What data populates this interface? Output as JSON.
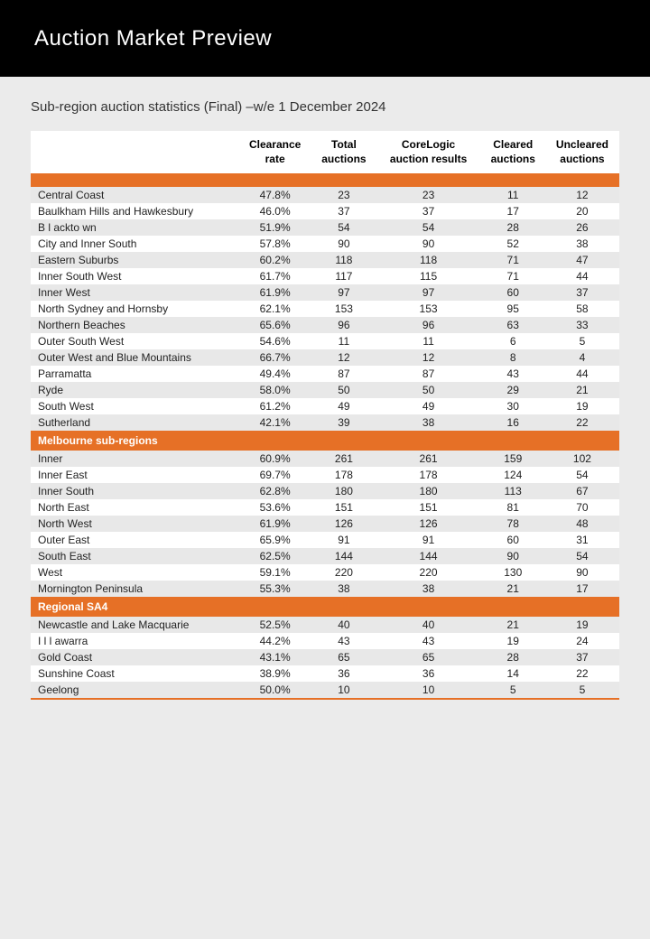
{
  "header": {
    "title": "Auction Market Preview"
  },
  "subtitle": "Sub-region auction statistics (Final) –w/e 1 December 2024",
  "columns": [
    "",
    "Clearance rate",
    "Total auctions",
    "CoreLogic auction results",
    "Cleared auctions",
    "Uncleared auctions"
  ],
  "sections": [
    {
      "name": "",
      "rows": [
        [
          "Central Coast",
          "47.8%",
          "23",
          "23",
          "11",
          "12"
        ],
        [
          "Baulkham Hills and Hawkesbury",
          "46.0%",
          "37",
          "37",
          "17",
          "20"
        ],
        [
          "B l ackto wn",
          "51.9%",
          "54",
          "54",
          "28",
          "26"
        ],
        [
          "City and Inner South",
          "57.8%",
          "90",
          "90",
          "52",
          "38"
        ],
        [
          "Eastern Suburbs",
          "60.2%",
          "118",
          "118",
          "71",
          "47"
        ],
        [
          "Inner South West",
          "61.7%",
          "117",
          "115",
          "71",
          "44"
        ],
        [
          "Inner West",
          "61.9%",
          "97",
          "97",
          "60",
          "37"
        ],
        [
          "North Sydney and Hornsby",
          "62.1%",
          "153",
          "153",
          "95",
          "58"
        ],
        [
          "Northern Beaches",
          "65.6%",
          "96",
          "96",
          "63",
          "33"
        ],
        [
          "Outer South West",
          "54.6%",
          "11",
          "11",
          "6",
          "5"
        ],
        [
          "Outer West and Blue Mountains",
          "66.7%",
          "12",
          "12",
          "8",
          "4"
        ],
        [
          "Parramatta",
          "49.4%",
          "87",
          "87",
          "43",
          "44"
        ],
        [
          "Ryde",
          "58.0%",
          "50",
          "50",
          "29",
          "21"
        ],
        [
          "South West",
          "61.2%",
          "49",
          "49",
          "30",
          "19"
        ],
        [
          "Sutherland",
          "42.1%",
          "39",
          "38",
          "16",
          "22"
        ]
      ]
    },
    {
      "name": "Melbourne sub-regions",
      "rows": [
        [
          "Inner",
          "60.9%",
          "261",
          "261",
          "159",
          "102"
        ],
        [
          "Inner East",
          "69.7%",
          "178",
          "178",
          "124",
          "54"
        ],
        [
          "Inner South",
          "62.8%",
          "180",
          "180",
          "113",
          "67"
        ],
        [
          "North East",
          "53.6%",
          "151",
          "151",
          "81",
          "70"
        ],
        [
          "North West",
          "61.9%",
          "126",
          "126",
          "78",
          "48"
        ],
        [
          "Outer East",
          "65.9%",
          "91",
          "91",
          "60",
          "31"
        ],
        [
          "South East",
          "62.5%",
          "144",
          "144",
          "90",
          "54"
        ],
        [
          "West",
          "59.1%",
          "220",
          "220",
          "130",
          "90"
        ],
        [
          "Mornington Peninsula",
          "55.3%",
          "38",
          "38",
          "21",
          "17"
        ]
      ]
    },
    {
      "name": "Regional SA4",
      "rows": [
        [
          "Newcastle and Lake Macquarie",
          "52.5%",
          "40",
          "40",
          "21",
          "19"
        ],
        [
          "I l l awarra",
          "44.2%",
          "43",
          "43",
          "19",
          "24"
        ],
        [
          "Gold Coast",
          "43.1%",
          "65",
          "65",
          "28",
          "37"
        ],
        [
          "Sunshine Coast",
          "38.9%",
          "36",
          "36",
          "14",
          "22"
        ],
        [
          "Geelong",
          "50.0%",
          "10",
          "10",
          "5",
          "5"
        ]
      ]
    }
  ],
  "colors": {
    "accent": "#e67026",
    "header_bg": "#000000",
    "page_bg": "#ebebeb",
    "row_alt": "#e8e8e8"
  }
}
